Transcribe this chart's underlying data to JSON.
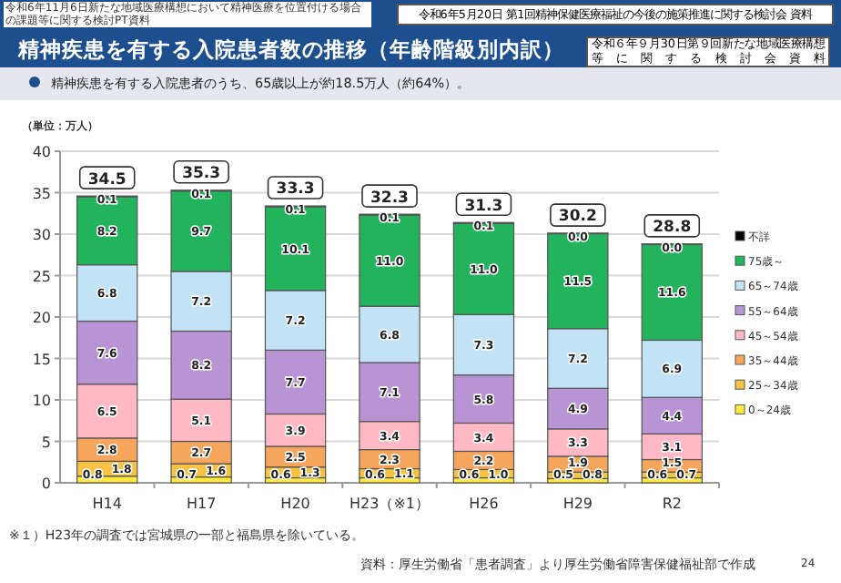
{
  "chart_data": {
    "type": "bar",
    "stacked": true,
    "title": "精神疾患を有する入院患者数の推移（年齢階級別内訳）",
    "subtitle": "精神疾患を有する入院患者のうち、65歳以上が約18.5万人（約64%）。",
    "ylabel": "（単位：万人）",
    "categories": [
      "H14",
      "H17",
      "H20",
      "H23（※1）",
      "H26",
      "H29",
      "R2"
    ],
    "series": [
      {
        "name": "0～24歳",
        "color": "#ffe93b",
        "values": [
          0.8,
          0.7,
          0.6,
          0.6,
          0.6,
          0.5,
          0.6
        ],
        "value_labels": [
          "0.8",
          "0.7",
          "0.6",
          "0.6",
          "0.6",
          "0.5",
          "0.6"
        ]
      },
      {
        "name": "25～34歳",
        "color": "#f5c242",
        "values": [
          1.8,
          1.6,
          1.3,
          1.1,
          1.0,
          0.8,
          0.7
        ],
        "value_labels": [
          "1.8",
          "1.6",
          "1.3",
          "1.1",
          "1.0",
          "0.8",
          "0.7"
        ]
      },
      {
        "name": "35～44歳",
        "color": "#f5a55c",
        "values": [
          2.8,
          2.7,
          2.5,
          2.3,
          2.2,
          1.9,
          1.5
        ],
        "value_labels": [
          "2.8",
          "2.7",
          "2.5",
          "2.3",
          "2.2",
          "1.9",
          "1.5"
        ]
      },
      {
        "name": "45～54歳",
        "color": "#ffb9c4",
        "values": [
          6.5,
          5.1,
          3.9,
          3.4,
          3.4,
          3.3,
          3.1
        ],
        "value_labels": [
          "6.5",
          "5.1",
          "3.9",
          "3.4",
          "3.4",
          "3.3",
          "3.1"
        ]
      },
      {
        "name": "55～64歳",
        "color": "#b894d4",
        "values": [
          7.6,
          8.2,
          7.7,
          7.1,
          5.8,
          4.9,
          4.4
        ],
        "value_labels": [
          "7.6",
          "8.2",
          "7.7",
          "7.1",
          "5.8",
          "4.9",
          "4.4"
        ]
      },
      {
        "name": "65～74歳",
        "color": "#c2e2f5",
        "values": [
          6.8,
          7.2,
          7.2,
          6.8,
          7.3,
          7.2,
          6.9
        ],
        "value_labels": [
          "6.8",
          "7.2",
          "7.2",
          "6.8",
          "7.3",
          "7.2",
          "6.9"
        ]
      },
      {
        "name": "75歳～",
        "color": "#22b35c",
        "values": [
          8.2,
          9.7,
          10.1,
          11.0,
          11.0,
          11.5,
          11.6
        ],
        "value_labels": [
          "8.2",
          "9.7",
          "10.1",
          "11.0",
          "11.0",
          "11.5",
          "11.6"
        ]
      },
      {
        "name": "不詳",
        "color": "#000000",
        "values": [
          0.1,
          0.1,
          0.1,
          0.1,
          0.1,
          0.0,
          0.0
        ],
        "value_labels": [
          "0.1",
          "0.1",
          "0.1",
          "0.1",
          "0.1",
          "0.0",
          "0.0"
        ]
      }
    ],
    "totals": [
      "34.5",
      "35.3",
      "33.3",
      "32.3",
      "31.3",
      "30.2",
      "28.8"
    ],
    "ylim": [
      0,
      40
    ],
    "yticks": [
      0,
      5,
      10,
      15,
      20,
      25,
      30,
      35,
      40
    ],
    "grid": "y",
    "legend": "right",
    "annotations": [
      "令和6年11月6日新たな地域医療構想において精神医療を位置付ける場合の課題等に関する検討PT資料",
      "令和6年5月20日 第1回精神保健医療福祉の今後の施策推進に関する検討会 資料",
      "令和６年９月30日第９回新たな地域医療構想等に関する検討会資料",
      "※１）H23年の調査では宮城県の一部と福島県を除いている。",
      "資料：厚生労働省「患者調査」より厚生労働省障害保健福祉部で作成",
      "24"
    ]
  }
}
